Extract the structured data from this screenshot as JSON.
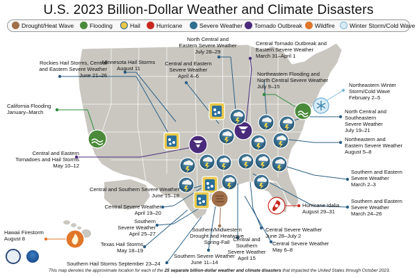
{
  "title": "U.S. 2023 Billion-Dollar Weather and Climate Disasters",
  "legend": [
    {
      "label": "Drought/Heat Wave",
      "color": "#a0704a",
      "icon": "drought-icon"
    },
    {
      "label": "Flooding",
      "color": "#4a8a3a",
      "icon": "flood-icon"
    },
    {
      "label": "Hail",
      "color": "#e8c84a",
      "icon": "hail-icon"
    },
    {
      "label": "Hurricane",
      "color": "#c8281e",
      "icon": "hurricane-icon"
    },
    {
      "label": "Severe Weather",
      "color": "#2f6f8f",
      "icon": "severe-weather-icon"
    },
    {
      "label": "Tornado Outbreak",
      "color": "#4a2a7a",
      "icon": "tornado-icon"
    },
    {
      "label": "Wildfire",
      "color": "#e0762a",
      "icon": "wildfire-icon"
    },
    {
      "label": "Winter Storm/Cold Wave",
      "color": "#7fb8d8",
      "icon": "snowflake-icon"
    }
  ],
  "events": [
    {
      "label": "Rockies Hail Storms, Central\nand Eastern Severe Weather\nJune 21–26"
    },
    {
      "label": "Minnesota Hail Storms\nAugust 11"
    },
    {
      "label": "Central and Eastern\nSevere Weather\nApril 4–6"
    },
    {
      "label": "North Central and\nEastern Severe Weather\nJuly 28–29"
    },
    {
      "label": "Central Tornado Outbreak and\nEastern Severe Weather\nMarch 31–April 1"
    },
    {
      "label": "Northeastern Flooding and\nNorth Central Severe Weather\nJuly 9–15"
    },
    {
      "label": "Northeastern Winter\nStorm/Cold Wave\nFebruary 2–5"
    },
    {
      "label": "California Flooding\nJanuary–March"
    },
    {
      "label": "North Central and\nSoutheastern\nSevere Weather\nJuly 19–21"
    },
    {
      "label": "Northeastern and\nEastern Severe Weather\nAugust 5–8"
    },
    {
      "label": "Central and Eastern\nTornadoes and Hail Storms\nMay 10–12"
    },
    {
      "label": "Southern and Eastern\nSevere Weather\nMarch 2–3"
    },
    {
      "label": "Central and Southern Severe Weather\nJune 15–18"
    },
    {
      "label": "Southern and Eastern\nSevere Weather\nMarch 24–26"
    },
    {
      "label": "Central Severe Weather\nApril 19–20"
    },
    {
      "label": "Southern\nSevere Weather\nApril 25–27"
    },
    {
      "label": "Hurricane Idalia\nAugust 29–31"
    },
    {
      "label": "Texas Hail Storms\nMay 18–19"
    },
    {
      "label": "Hawaii Firestorm\nAugust 8"
    },
    {
      "label": "Southern/Midwestern\nDrought and Heatwave\nSpring-Fall"
    },
    {
      "label": "Central and\nSouthern\nSevere Weather\nApril 15"
    },
    {
      "label": "Central Severe Weather\nJune 28–July 2"
    },
    {
      "label": "Central Severe Weather\nMay 6–8"
    },
    {
      "label": "Southern Severe Weather\nJune 11–14"
    },
    {
      "label": "Southern Hail Storms September 23–24"
    }
  ],
  "footnote_prefix": "This map denotes the approximate location for each of the ",
  "footnote_bold": "25 separate billion-dollar weather and climate disasters",
  "footnote_suffix": " that impacted the United States through October 2023.",
  "colors": {
    "land": "#c9c7c0",
    "state_lines": "#ffffff",
    "leader_green": "#2e8b3a",
    "leader_blue": "#2b5f86",
    "leader_purple": "#4a2a7a",
    "leader_red": "#c8281e",
    "leader_brown": "#a0704a"
  }
}
